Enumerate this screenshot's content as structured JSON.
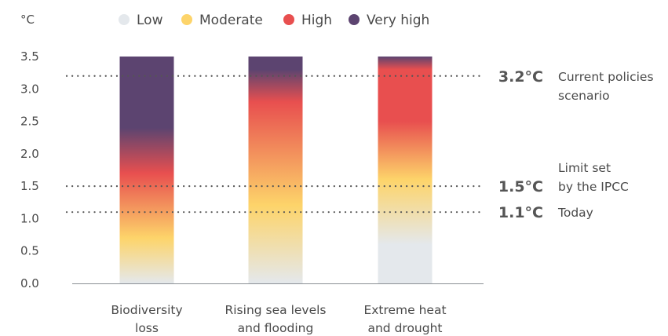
{
  "chart_data": {
    "type": "bar",
    "ylabel": "°C",
    "ylim": [
      0,
      3.5
    ],
    "y_ticks": [
      "0.0",
      "0.5",
      "1.0",
      "1.5",
      "2.0",
      "2.5",
      "3.0",
      "3.5"
    ],
    "legend_placement": "top",
    "legend": [
      {
        "label": "Low",
        "color": "#e4e8ec"
      },
      {
        "label": "Moderate",
        "color": "#fdd46a"
      },
      {
        "label": "High",
        "color": "#e84f4f"
      },
      {
        "label": "Very high",
        "color": "#5c4470"
      }
    ],
    "categories": [
      {
        "lines": [
          "Biodiversity",
          "loss"
        ],
        "value": 3.5,
        "risk_transitions": [
          {
            "temp": 0.0,
            "level": "Low"
          },
          {
            "temp": 0.7,
            "level": "Moderate"
          },
          {
            "temp": 1.7,
            "level": "High"
          },
          {
            "temp": 2.4,
            "level": "Very high"
          },
          {
            "temp": 3.5,
            "level": "Very high"
          }
        ]
      },
      {
        "lines": [
          "Rising sea levels",
          "and flooding"
        ],
        "value": 3.5,
        "risk_transitions": [
          {
            "temp": 0.0,
            "level": "Low"
          },
          {
            "temp": 1.2,
            "level": "Moderate"
          },
          {
            "temp": 2.8,
            "level": "High"
          },
          {
            "temp": 3.3,
            "level": "Very high"
          },
          {
            "temp": 3.5,
            "level": "Very high"
          }
        ]
      },
      {
        "lines": [
          "Extreme heat",
          "and drought"
        ],
        "value": 3.5,
        "risk_transitions": [
          {
            "temp": 0.0,
            "level": "Low"
          },
          {
            "temp": 0.6,
            "level": "Low"
          },
          {
            "temp": 1.6,
            "level": "Moderate"
          },
          {
            "temp": 2.5,
            "level": "High"
          },
          {
            "temp": 3.3,
            "level": "High"
          },
          {
            "temp": 3.5,
            "level": "Very high"
          }
        ]
      }
    ],
    "reference_lines": [
      {
        "y": 3.2,
        "value_label": "3.2°C",
        "desc_lines": [
          "Current policies",
          "scenario"
        ]
      },
      {
        "y": 1.5,
        "value_label": "1.5°C",
        "desc_lines": [
          "Limit set",
          "by the IPCC"
        ]
      },
      {
        "y": 1.1,
        "value_label": "1.1°C",
        "desc_lines": [
          "Today"
        ]
      }
    ],
    "grid": false
  }
}
